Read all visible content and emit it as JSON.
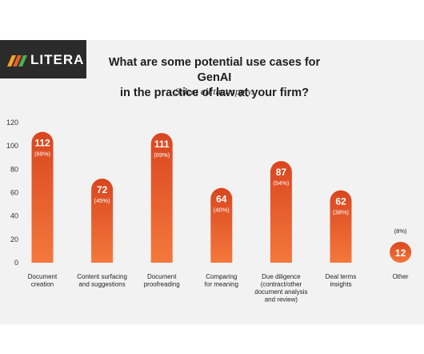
{
  "brand": {
    "name": "LITERA",
    "colors": {
      "logo_bg": "#2b2b2b",
      "mark": [
        "#f5a623",
        "#e85d2a",
        "#4caf50"
      ]
    }
  },
  "header": {
    "title_line1": "What are some potential use cases for GenAI",
    "title_line2": "in the practice of law at your firm?",
    "subtitle": "Select all that apply."
  },
  "colors": {
    "bar_top": "#d9461f",
    "bar_bottom": "#f4783c",
    "card_bg": "#f2f2f2"
  },
  "chart_data": {
    "type": "bar",
    "title": "What are some potential use cases for GenAI in the practice of law at your firm?",
    "subtitle": "Select all that apply.",
    "xlabel": "",
    "ylabel": "",
    "ylim": [
      0,
      120
    ],
    "yticks": [
      0,
      20,
      40,
      60,
      80,
      100,
      120
    ],
    "grid": false,
    "categories": [
      [
        "Document",
        "creation"
      ],
      [
        "Content surfacing",
        "and suggestions"
      ],
      [
        "Document",
        "proofreading"
      ],
      [
        "Comparing",
        "for meaning"
      ],
      [
        "Due diligence",
        "(contract/other",
        "document analysis",
        "and review)"
      ],
      [
        "Deal terms",
        "insights"
      ],
      [
        "Other"
      ]
    ],
    "values": [
      112,
      72,
      111,
      64,
      87,
      62,
      12
    ],
    "percent_labels": [
      "(69%)",
      "(45%)",
      "(69%)",
      "(40%)",
      "(54%)",
      "(38%)",
      "(8%)"
    ]
  }
}
